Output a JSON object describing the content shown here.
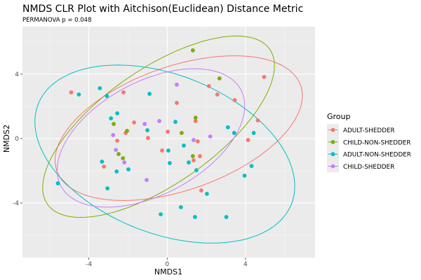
{
  "chart_data": {
    "type": "scatter",
    "title": "NMDS CLR Plot with Aitchison(Euclidean) Distance Metric",
    "subtitle": "PERMANOVA p = 0.048",
    "xlabel": "NMDS1",
    "ylabel": "NMDS2",
    "xlim": [
      -7.39,
      7.55
    ],
    "ylim": [
      -7.39,
      7.39
    ],
    "xticks": [
      -4,
      0,
      4
    ],
    "yticks": [
      -4,
      0,
      4
    ],
    "grid": true,
    "legend": {
      "title": "Group",
      "position": "right"
    },
    "series": [
      {
        "name": "ADULT-SHEDDER",
        "color": "#F8766D",
        "points": [
          [
            -4.9,
            2.87
          ],
          [
            -2.23,
            2.87
          ],
          [
            -1.69,
            1.0
          ],
          [
            -2.12,
            0.35
          ],
          [
            -2.55,
            -0.13
          ],
          [
            -0.98,
            0.04
          ],
          [
            0.03,
            0.43
          ],
          [
            -0.26,
            -0.74
          ],
          [
            4.95,
            3.83
          ],
          [
            2.13,
            3.26
          ],
          [
            2.56,
            2.74
          ],
          [
            3.45,
            2.39
          ],
          [
            0.49,
            2.22
          ],
          [
            1.45,
            1.09
          ],
          [
            4.63,
            1.13
          ],
          [
            1.56,
            -0.17
          ],
          [
            4.13,
            -0.09
          ],
          [
            -3.23,
            -1.74
          ],
          [
            1.67,
            -1.09
          ],
          [
            1.35,
            -1.35
          ],
          [
            1.74,
            -3.22
          ]
        ],
        "ellipse": {
          "center": [
            0.59,
            0.65
          ],
          "axis1": [
            6.25,
            1.43
          ],
          "axis2": [
            0.89,
            4.26
          ]
        }
      },
      {
        "name": "CHILD-NON-SHEDDER",
        "color": "#7CAE00",
        "points": [
          [
            1.31,
            5.48
          ],
          [
            2.67,
            3.74
          ],
          [
            1.45,
            1.3
          ],
          [
            0.74,
            0.35
          ],
          [
            -2.73,
            0.91
          ],
          [
            -2.05,
            0.48
          ],
          [
            -2.48,
            -0.96
          ],
          [
            -2.26,
            -1.22
          ],
          [
            1.31,
            -1.09
          ]
        ],
        "ellipse": {
          "center": [
            -0.44,
            0.74
          ],
          "axis1": [
            5.64,
            4.87
          ],
          "axis2": [
            1.79,
            -2.83
          ]
        }
      },
      {
        "name": "ADULT-NON-SHEDDER",
        "color": "#00BFC4",
        "points": [
          [
            -4.51,
            2.74
          ],
          [
            -3.44,
            3.13
          ],
          [
            -3.08,
            2.65
          ],
          [
            -0.9,
            2.78
          ],
          [
            -2.55,
            1.57
          ],
          [
            -2.87,
            1.26
          ],
          [
            -1.01,
            0.52
          ],
          [
            0.06,
            -0.74
          ],
          [
            0.42,
            1.04
          ],
          [
            3.1,
            0.7
          ],
          [
            3.42,
            0.35
          ],
          [
            4.42,
            0.35
          ],
          [
            0.85,
            -0.43
          ],
          [
            -3.33,
            -1.43
          ],
          [
            -2.58,
            -2.04
          ],
          [
            -1.98,
            -1.91
          ],
          [
            -5.58,
            -2.78
          ],
          [
            -3.05,
            -3.09
          ],
          [
            -0.33,
            -4.7
          ],
          [
            0.13,
            -1.52
          ],
          [
            1.1,
            -1.48
          ],
          [
            1.49,
            -1.96
          ],
          [
            4.31,
            -1.7
          ],
          [
            3.95,
            -2.3
          ],
          [
            2.03,
            -3.43
          ],
          [
            0.7,
            -4.26
          ],
          [
            1.42,
            -4.87
          ],
          [
            3.02,
            -4.87
          ]
        ],
        "ellipse": {
          "center": [
            -0.12,
            -0.96
          ],
          "axis1": [
            6.07,
            -3.91
          ],
          "axis2": [
            -2.68,
            -3.91
          ]
        }
      },
      {
        "name": "CHILD-SHEDDER",
        "color": "#C77CFF",
        "points": [
          [
            -1.15,
            0.91
          ],
          [
            -0.4,
            1.09
          ],
          [
            -2.76,
            0.22
          ],
          [
            -2.62,
            -0.7
          ],
          [
            0.49,
            3.35
          ],
          [
            1.35,
            -0.09
          ],
          [
            2.2,
            0.13
          ],
          [
            -2.19,
            -1.48
          ],
          [
            -1.05,
            -2.57
          ]
        ],
        "ellipse": {
          "center": [
            -0.83,
            0.04
          ],
          "axis1": [
            4.57,
            3.04
          ],
          "axis2": [
            1.43,
            -3.04
          ]
        }
      }
    ]
  }
}
